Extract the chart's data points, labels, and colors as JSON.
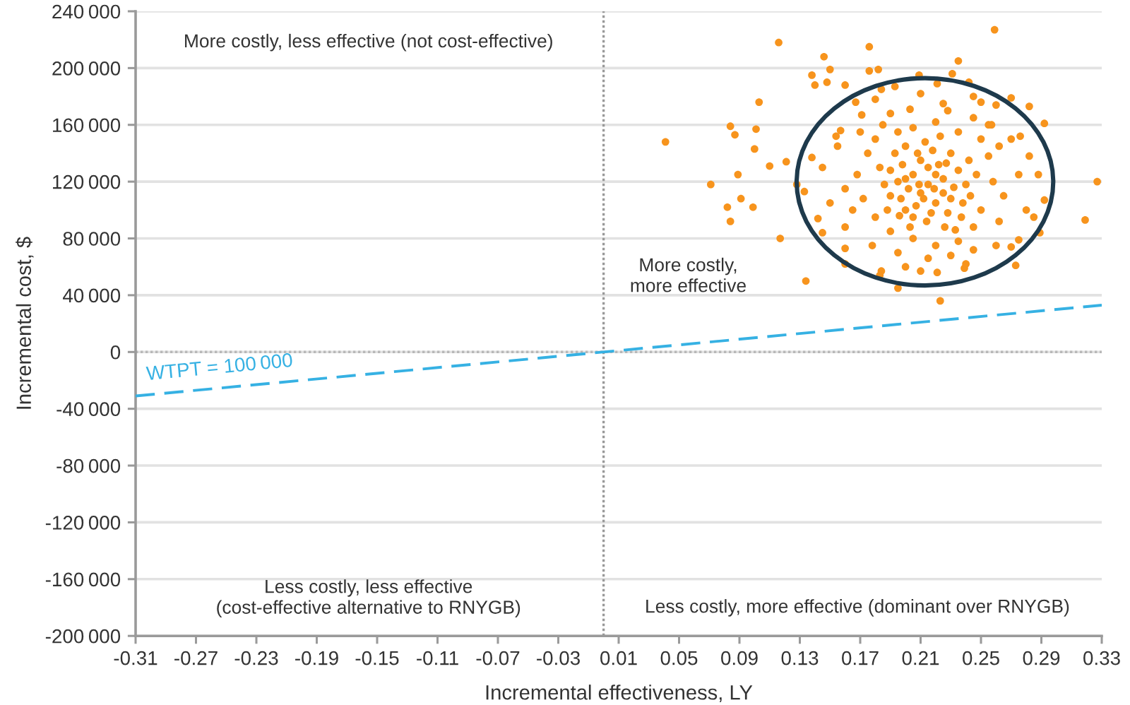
{
  "chart_data": {
    "type": "scatter",
    "xlabel": "Incremental effectiveness, LY",
    "ylabel": "Incremental cost, $",
    "xlim": [
      -0.31,
      0.33
    ],
    "xticks": [
      -0.31,
      -0.27,
      -0.23,
      -0.19,
      -0.15,
      -0.11,
      -0.07,
      -0.03,
      0.01,
      0.05,
      0.09,
      0.13,
      0.17,
      0.21,
      0.25,
      0.29,
      0.33
    ],
    "ylim": [
      -200000,
      240000
    ],
    "yticks": [
      {
        "value": -200000,
        "label": "-200 000"
      },
      {
        "value": -160000,
        "label": "-160 000"
      },
      {
        "value": -120000,
        "label": "-120 000"
      },
      {
        "value": -80000,
        "label": "-80 000"
      },
      {
        "value": -40000,
        "label": "-40 000"
      },
      0,
      {
        "value": 40000,
        "label": "40 000"
      },
      {
        "value": 80000,
        "label": "80 000"
      },
      {
        "value": 120000,
        "label": "120 000"
      },
      {
        "value": 160000,
        "label": "160 000"
      },
      {
        "value": 200000,
        "label": "200 000"
      },
      {
        "value": 240000,
        "label": "240 000"
      }
    ],
    "grid": "y",
    "ref_lines": [
      {
        "axis": "x",
        "value": 0,
        "color": "#999999",
        "line_style": "dotted"
      },
      {
        "axis": "y",
        "value": 0,
        "color": "#b8b8b8",
        "line_style": "dotted"
      }
    ],
    "annotations": [
      "More costly, less effective (not cost-effective)",
      "More costly,\nmore effective",
      "Less costly, less effective\n(cost-effective alternative to RNYGB)",
      "Less costly, more effective (dominant over RNYGB)"
    ],
    "series": [
      {
        "color": "#f7941d",
        "marker": "circle",
        "x": [
          0.041,
          0.071,
          0.116,
          0.176,
          0.259,
          0.327,
          0.319,
          0.134,
          0.223,
          0.195,
          0.146,
          0.235,
          0.138,
          0.14,
          0.15,
          0.148,
          0.16,
          0.176,
          0.182,
          0.103,
          0.084,
          0.087,
          0.101,
          0.1,
          0.089,
          0.11,
          0.121,
          0.082,
          0.091,
          0.099,
          0.084,
          0.117,
          0.128,
          0.133,
          0.142,
          0.145,
          0.16,
          0.16,
          0.184,
          0.183,
          0.21,
          0.221,
          0.239,
          0.273,
          0.26,
          0.27,
          0.275,
          0.289,
          0.285,
          0.292,
          0.288,
          0.282,
          0.292,
          0.282,
          0.27,
          0.26,
          0.276,
          0.242,
          0.231,
          0.209,
          0.221,
          0.193,
          0.184,
          0.167,
          0.154,
          0.138,
          0.157,
          0.171,
          0.203,
          0.225,
          0.245,
          0.257,
          0.195,
          0.205,
          0.215,
          0.225,
          0.235,
          0.21,
          0.22,
          0.2,
          0.19,
          0.23,
          0.24,
          0.205,
          0.215,
          0.225,
          0.198,
          0.212,
          0.228,
          0.238,
          0.19,
          0.218,
          0.202,
          0.232,
          0.208,
          0.222,
          0.196,
          0.242,
          0.186,
          0.214,
          0.226,
          0.2,
          0.175,
          0.18,
          0.185,
          0.195,
          0.205,
          0.22,
          0.235,
          0.25,
          0.255,
          0.258,
          0.25,
          0.245,
          0.235,
          0.22,
          0.205,
          0.19,
          0.18,
          0.172,
          0.168,
          0.178,
          0.195,
          0.215,
          0.23,
          0.245,
          0.262,
          0.265,
          0.262,
          0.245,
          0.228,
          0.19,
          0.17,
          0.165,
          0.16,
          0.255,
          0.145,
          0.15,
          0.155,
          0.16,
          0.275,
          0.28,
          0.27,
          0.2,
          0.24,
          0.18,
          0.21,
          0.25,
          0.2,
          0.21,
          0.22,
          0.23,
          0.207,
          0.217,
          0.197,
          0.227,
          0.237,
          0.188,
          0.213,
          0.203,
          0.233,
          0.243,
          0.193,
          0.223,
          0.183,
          0.247,
          0.209,
          0.219
        ],
        "values": [
          148000,
          118000,
          218000,
          215000,
          227000,
          120000,
          93000,
          50000,
          36000,
          45000,
          208000,
          205000,
          195000,
          188000,
          199000,
          190000,
          188000,
          198000,
          199000,
          176000,
          159000,
          153000,
          157000,
          143000,
          125000,
          131000,
          134000,
          102000,
          108000,
          102000,
          92000,
          80000,
          118000,
          113000,
          94000,
          84000,
          73000,
          62000,
          57000,
          54000,
          57000,
          56000,
          59000,
          61000,
          75000,
          74000,
          79000,
          84000,
          95000,
          107000,
          125000,
          138000,
          161000,
          173000,
          179000,
          174000,
          152000,
          190000,
          196000,
          195000,
          189000,
          187000,
          185000,
          176000,
          152000,
          137000,
          156000,
          167000,
          171000,
          175000,
          180000,
          160000,
          120000,
          125000,
          118000,
          112000,
          128000,
          135000,
          105000,
          100000,
          110000,
          140000,
          118000,
          95000,
          130000,
          122000,
          132000,
          108000,
          98000,
          105000,
          128000,
          142000,
          115000,
          116000,
          140000,
          132000,
          96000,
          135000,
          118000,
          92000,
          88000,
          145000,
          140000,
          150000,
          160000,
          155000,
          158000,
          162000,
          155000,
          150000,
          138000,
          120000,
          100000,
          88000,
          78000,
          75000,
          80000,
          85000,
          95000,
          108000,
          125000,
          75000,
          70000,
          66000,
          68000,
          72000,
          92000,
          110000,
          145000,
          165000,
          170000,
          168000,
          155000,
          100000,
          115000,
          160000,
          130000,
          105000,
          145000,
          88000,
          125000,
          100000,
          150000,
          60000,
          62000,
          178000,
          182000,
          176000,
          122000,
          112000,
          125000,
          108000,
          103000,
          98000,
          108000,
          133000,
          95000,
          100000,
          148000,
          88000,
          86000,
          110000,
          140000,
          152000,
          130000,
          125000,
          118000,
          115000
        ]
      },
      {
        "type": "line",
        "name": "WTPT = 100 000",
        "color": "#36b1e3",
        "line_style": "dashed",
        "x": [
          -0.31,
          0.33
        ],
        "values": [
          -31000,
          33000
        ]
      }
    ]
  }
}
